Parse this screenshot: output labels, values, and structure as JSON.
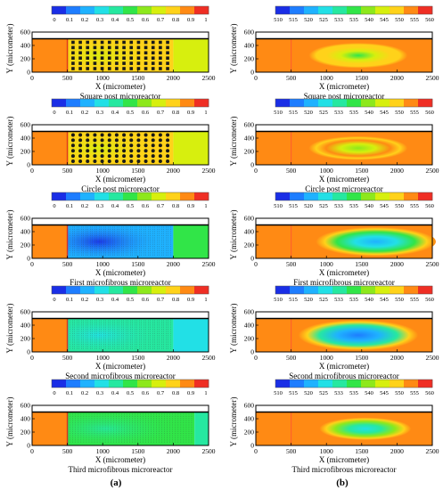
{
  "chart_data": [
    {
      "type": "heatmap",
      "panel": "a",
      "caption": "Square post microreactor",
      "legend_ticks": [
        "0",
        "0.1",
        "0.2",
        "0.3",
        "0.4",
        "0.5",
        "0.6",
        "0.7",
        "0.8",
        "0.9",
        "1"
      ],
      "xlabel": "X (micrometer)",
      "ylabel": "Y (micrometer)",
      "x_ticks": [
        "0",
        "500",
        "1000",
        "1500",
        "2000",
        "2500"
      ],
      "y_ticks": [
        "0",
        "200",
        "400",
        "600"
      ],
      "xlim": [
        0,
        2500
      ],
      "ylim": [
        0,
        600
      ],
      "channel_y": [
        0,
        500
      ],
      "field": {
        "inlet_end": 500,
        "region_end": 2000,
        "inlet_value": 0.9,
        "region_value": 0.75,
        "outlet_value": 0.65
      },
      "obstacles": {
        "shape": "square",
        "x_range": [
          580,
          1920
        ],
        "cols": 14,
        "rows": 6
      }
    },
    {
      "type": "heatmap",
      "panel": "b",
      "caption": "Square post microreactor",
      "legend_ticks": [
        "510",
        "515",
        "520",
        "525",
        "533",
        "535",
        "540",
        "545",
        "550",
        "555",
        "560"
      ],
      "xlabel": "X (micrometer)",
      "ylabel": "Y (micrometer)",
      "x_ticks": [
        "0",
        "500",
        "1000",
        "1500",
        "2000",
        "2500"
      ],
      "y_ticks": [
        "0",
        "200",
        "400",
        "600"
      ],
      "xlim": [
        0,
        2500
      ],
      "ylim": [
        0,
        600
      ],
      "channel_y": [
        0,
        500
      ],
      "field": {
        "background_value": 0.9,
        "hot_center_x": 1450,
        "rx": 700,
        "ry": 190,
        "min_value": 0.5
      }
    },
    {
      "type": "heatmap",
      "panel": "a",
      "caption": "Circle post microreactor",
      "legend_ticks": [
        "0",
        "0.1",
        "0.2",
        "0.3",
        "0.4",
        "0.5",
        "0.6",
        "0.7",
        "0.8",
        "0.9",
        "1"
      ],
      "xlabel": "X (micrometer)",
      "ylabel": "Y (micrometer)",
      "x_ticks": [
        "0",
        "500",
        "1000",
        "1500",
        "2000",
        "2500"
      ],
      "y_ticks": [
        "0",
        "200",
        "400",
        "600"
      ],
      "xlim": [
        0,
        2500
      ],
      "ylim": [
        0,
        600
      ],
      "channel_y": [
        0,
        500
      ],
      "field": {
        "inlet_end": 500,
        "region_end": 2000,
        "inlet_value": 0.9,
        "region_value": 0.8,
        "outlet_value": 0.7
      },
      "obstacles": {
        "shape": "circle",
        "x_range": [
          580,
          1920
        ],
        "cols": 14,
        "rows": 6
      }
    },
    {
      "type": "heatmap",
      "panel": "b",
      "caption": "Circle post microreactor",
      "legend_ticks": [
        "510",
        "515",
        "520",
        "525",
        "533",
        "535",
        "540",
        "545",
        "550",
        "555",
        "560"
      ],
      "xlabel": "X (micrometer)",
      "ylabel": "Y (micrometer)",
      "x_ticks": [
        "0",
        "500",
        "1000",
        "1500",
        "2000",
        "2500"
      ],
      "y_ticks": [
        "0",
        "200",
        "400",
        "600"
      ],
      "xlim": [
        0,
        2500
      ],
      "ylim": [
        0,
        600
      ],
      "channel_y": [
        0,
        500
      ],
      "field": {
        "background_value": 0.9,
        "hot_center_x": 1450,
        "rx": 700,
        "ry": 180,
        "min_value": 0.55
      }
    },
    {
      "type": "heatmap",
      "panel": "a",
      "caption": "First microfibrous microreactor",
      "legend_ticks": [
        "0",
        "0.1",
        "0.2",
        "0.3",
        "0.4",
        "0.5",
        "0.6",
        "0.7",
        "0.8",
        "0.9",
        "1"
      ],
      "xlabel": "X (micrometer)",
      "ylabel": "Y (micrometer)",
      "x_ticks": [
        "0",
        "500",
        "1000",
        "1500",
        "2000",
        "2500"
      ],
      "y_ticks": [
        "0",
        "200",
        "400",
        "600"
      ],
      "xlim": [
        0,
        2500
      ],
      "ylim": [
        0,
        600
      ],
      "channel_y": [
        0,
        500
      ],
      "field": {
        "inlet_end": 500,
        "region_end": 2000,
        "inlet_value": 0.9,
        "region_value": 0.15,
        "outlet_value": 0.45
      }
    },
    {
      "type": "heatmap",
      "panel": "b",
      "caption": "First microfibrous microreactor",
      "legend_ticks": [
        "510",
        "515",
        "520",
        "525",
        "533",
        "535",
        "540",
        "545",
        "550",
        "555",
        "560"
      ],
      "xlabel": "X (micrometer)",
      "ylabel": "Y (micrometer)",
      "x_ticks": [
        "0",
        "500",
        "1000",
        "1500",
        "2000",
        "2500"
      ],
      "y_ticks": [
        "0",
        "200",
        "400",
        "600"
      ],
      "xlim": [
        0,
        2500
      ],
      "ylim": [
        0,
        600
      ],
      "channel_y": [
        0,
        500
      ],
      "field": {
        "background_value": 0.9,
        "hot_center_x": 1700,
        "rx": 850,
        "ry": 220,
        "min_value": 0.15
      }
    },
    {
      "type": "heatmap",
      "panel": "a",
      "caption": "Second microfibrous microreactor",
      "legend_ticks": [
        "0",
        "0.1",
        "0.2",
        "0.3",
        "0.4",
        "0.5",
        "0.6",
        "0.7",
        "0.8",
        "0.9",
        "1"
      ],
      "xlabel": "X (micrometer)",
      "ylabel": "Y (micrometer)",
      "x_ticks": [
        "0",
        "500",
        "1000",
        "1500",
        "2000",
        "2500"
      ],
      "y_ticks": [
        "0",
        "200",
        "400",
        "600"
      ],
      "xlim": [
        0,
        2500
      ],
      "ylim": [
        0,
        600
      ],
      "channel_y": [
        0,
        500
      ],
      "field": {
        "inlet_end": 500,
        "region_end": 2000,
        "inlet_value": 0.9,
        "region_value": 0.4,
        "outlet_value": 0.3
      }
    },
    {
      "type": "heatmap",
      "panel": "b",
      "caption": "Second microfibrous microreactor",
      "legend_ticks": [
        "510",
        "515",
        "520",
        "525",
        "533",
        "535",
        "540",
        "545",
        "550",
        "555",
        "560"
      ],
      "xlabel": "X (micrometer)",
      "ylabel": "Y (micrometer)",
      "x_ticks": [
        "0",
        "500",
        "1000",
        "1500",
        "2000",
        "2500"
      ],
      "y_ticks": [
        "0",
        "200",
        "400",
        "600"
      ],
      "xlim": [
        0,
        2500
      ],
      "ylim": [
        0,
        600
      ],
      "channel_y": [
        0,
        500
      ],
      "field": {
        "background_value": 0.9,
        "hot_center_x": 1450,
        "rx": 850,
        "ry": 230,
        "min_value": 0.05
      }
    },
    {
      "type": "heatmap",
      "panel": "a",
      "caption": "Third microfibrous microreactor",
      "legend_ticks": [
        "0",
        "0.1",
        "0.2",
        "0.3",
        "0.4",
        "0.5",
        "0.6",
        "0.7",
        "0.8",
        "0.9",
        "1"
      ],
      "xlabel": "X (micrometer)",
      "ylabel": "Y (micrometer)",
      "x_ticks": [
        "0",
        "500",
        "1000",
        "1500",
        "2000",
        "2500"
      ],
      "y_ticks": [
        "0",
        "200",
        "400",
        "600"
      ],
      "xlim": [
        0,
        2500
      ],
      "ylim": [
        0,
        600
      ],
      "channel_y": [
        0,
        500
      ],
      "field": {
        "inlet_end": 500,
        "region_end": 2300,
        "inlet_value": 0.9,
        "region_value": 0.45,
        "outlet_value": 0.35
      }
    },
    {
      "type": "heatmap",
      "panel": "b",
      "caption": "Third microfibrous microreactor",
      "legend_ticks": [
        "510",
        "515",
        "520",
        "525",
        "533",
        "535",
        "540",
        "545",
        "550",
        "555",
        "560"
      ],
      "xlabel": "X (micrometer)",
      "ylabel": "Y (micrometer)",
      "x_ticks": [
        "0",
        "500",
        "1000",
        "1500",
        "2000",
        "2500"
      ],
      "y_ticks": [
        "0",
        "200",
        "400",
        "600"
      ],
      "xlim": [
        0,
        2500
      ],
      "ylim": [
        0,
        600
      ],
      "channel_y": [
        0,
        500
      ],
      "field": {
        "background_value": 0.9,
        "hot_center_x": 1550,
        "rx": 650,
        "ry": 170,
        "min_value": 0.25
      }
    }
  ],
  "panel_labels": {
    "a": "(a)",
    "b": "(b)"
  },
  "colors": {
    "colormap": [
      "#1a2ee6",
      "#1e7dff",
      "#1fb2ff",
      "#22e0e6",
      "#26e8a0",
      "#31e548",
      "#8de81c",
      "#d7ef0e",
      "#ffd21a",
      "#ff8a14",
      "#ef2e24"
    ]
  }
}
